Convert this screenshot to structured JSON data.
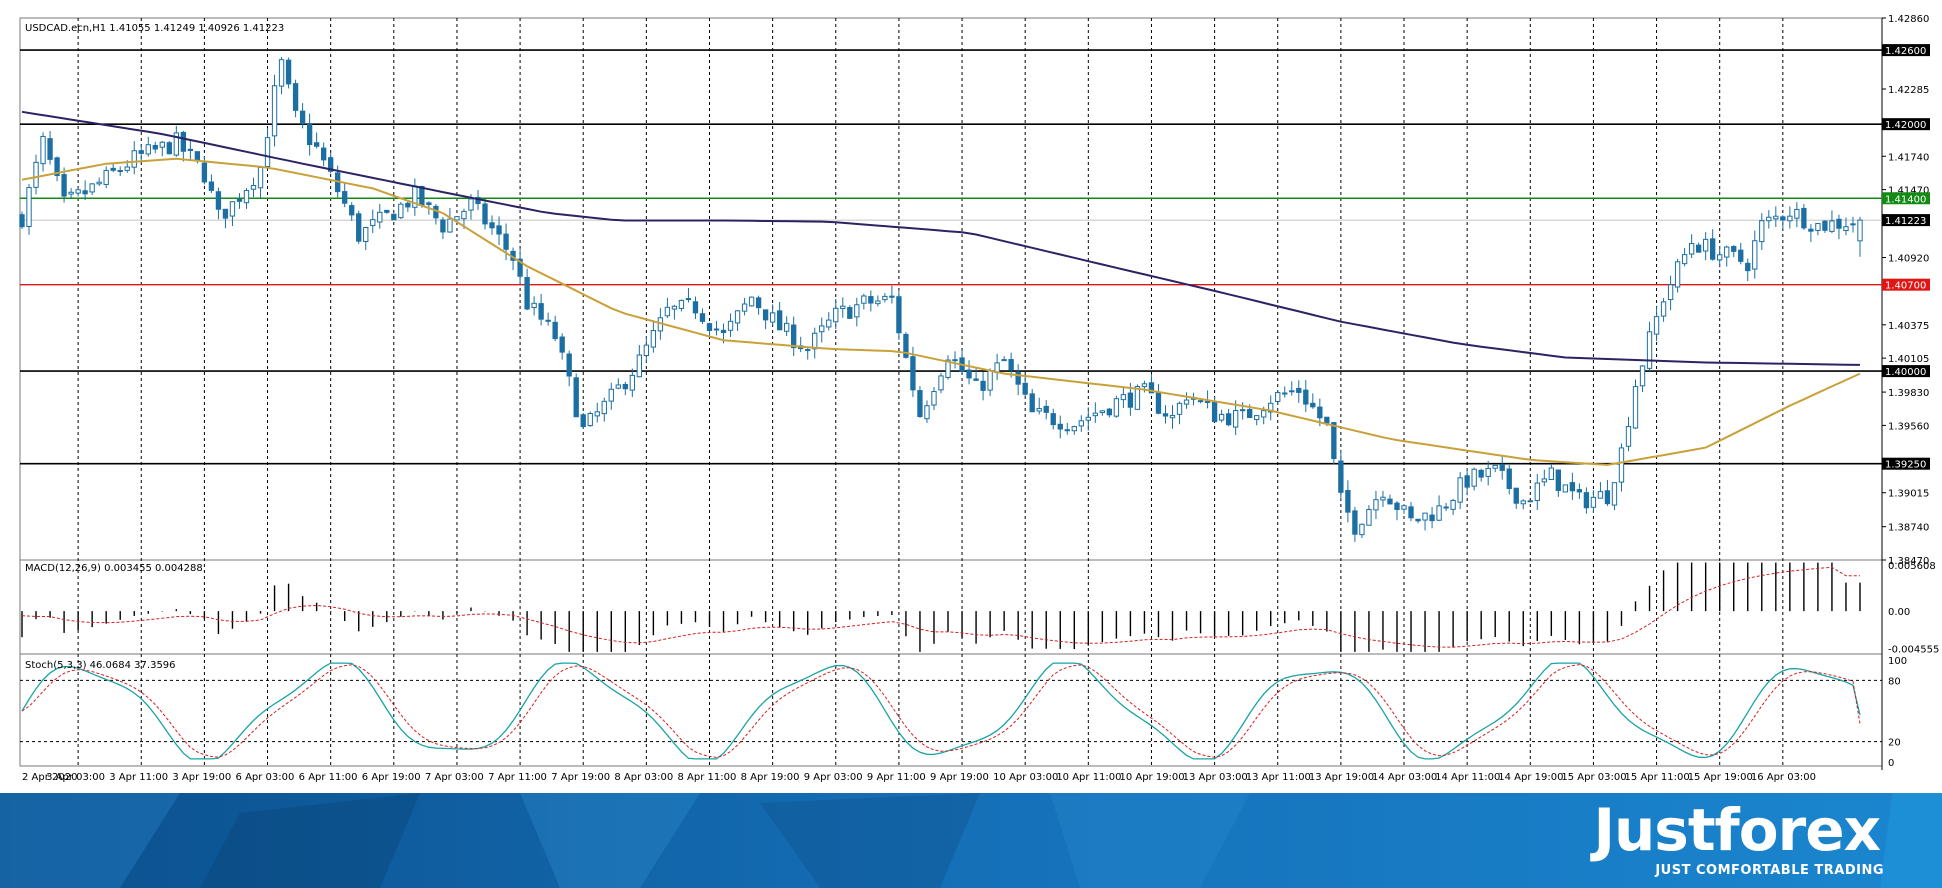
{
  "header": {
    "main_info": "USDCAD.ecn,H1  1.41055 1.41249 1.40926 1.41223",
    "macd_info": "MACD(12,26,9) 0.003455 0.004288",
    "stoch_info": "Stoch(5,3,3) 46.0684 37.3596"
  },
  "brand": {
    "name": "Justforex",
    "tagline": "JUST COMFORTABLE TRADING",
    "color_primary": "#1a78bf",
    "color_dark": "#0e5a9a"
  },
  "colors": {
    "bull": "#ffffff",
    "bear": "#1c6fa3",
    "candle_outline": "#1c6fa3",
    "ma_slow": "#2b2364",
    "ma_fast": "#c9a13a",
    "red_level": "#e01515",
    "green_level": "#138a13",
    "black_level": "#000000",
    "stoch_main": "#1aa3a3",
    "stoch_signal": "#d42020",
    "macd_signal": "#d42020",
    "macd_hist": "#000000"
  },
  "chart_data": [
    {
      "type": "candlestick",
      "symbol": "USDCAD.ecn",
      "timeframe": "H1",
      "ohlc_current": [
        1.41055,
        1.41249,
        1.40926,
        1.41223
      ],
      "ylim": [
        1.3847,
        1.4286
      ],
      "yticks": [
        "1.42860",
        "1.42600",
        "1.42285",
        "1.42000",
        "1.41740",
        "1.41470",
        "1.41400",
        "1.41223",
        "1.40920",
        "1.40700",
        "1.40375",
        "1.40105",
        "1.40000",
        "1.39830",
        "1.39560",
        "1.39250",
        "1.39015",
        "1.38740",
        "1.38470"
      ],
      "x_ticks": [
        "2 Apr 2020",
        "3 Apr 03:00",
        "3 Apr 11:00",
        "3 Apr 19:00",
        "6 Apr 03:00",
        "6 Apr 11:00",
        "6 Apr 19:00",
        "7 Apr 03:00",
        "7 Apr 11:00",
        "7 Apr 19:00",
        "8 Apr 03:00",
        "8 Apr 11:00",
        "8 Apr 19:00",
        "9 Apr 03:00",
        "9 Apr 11:00",
        "9 Apr 19:00",
        "10 Apr 03:00",
        "10 Apr 11:00",
        "10 Apr 19:00",
        "13 Apr 03:00",
        "13 Apr 11:00",
        "13 Apr 19:00",
        "14 Apr 03:00",
        "14 Apr 11:00",
        "14 Apr 19:00",
        "15 Apr 03:00",
        "15 Apr 11:00",
        "15 Apr 19:00",
        "16 Apr 03:00"
      ],
      "levels": [
        {
          "price": 1.426,
          "label": "1.42600",
          "color": "black"
        },
        {
          "price": 1.42,
          "label": "1.42000",
          "color": "black"
        },
        {
          "price": 1.414,
          "label": "1.41400",
          "color": "green"
        },
        {
          "price": 1.407,
          "label": "1.40700",
          "color": "red"
        },
        {
          "price": 1.4,
          "label": "1.40000",
          "color": "black"
        },
        {
          "price": 1.3925,
          "label": "1.39250",
          "color": "black"
        }
      ],
      "current_price": {
        "price": 1.41223,
        "label": "1.41223"
      },
      "ma_fast_keypoints": [
        [
          0,
          1.4155
        ],
        [
          12,
          1.4168
        ],
        [
          22,
          1.4172
        ],
        [
          35,
          1.4165
        ],
        [
          50,
          1.4148
        ],
        [
          60,
          1.4128
        ],
        [
          72,
          1.4085
        ],
        [
          85,
          1.4048
        ],
        [
          100,
          1.4025
        ],
        [
          115,
          1.4018
        ],
        [
          125,
          1.4016
        ],
        [
          140,
          1.3998
        ],
        [
          160,
          1.3985
        ],
        [
          178,
          1.3968
        ],
        [
          195,
          1.3945
        ],
        [
          215,
          1.3928
        ],
        [
          226,
          1.3924
        ],
        [
          240,
          1.3938
        ],
        [
          252,
          1.3972
        ],
        [
          262,
          1.3998
        ]
      ],
      "ma_slow_keypoints": [
        [
          0,
          1.421
        ],
        [
          20,
          1.4192
        ],
        [
          40,
          1.4168
        ],
        [
          60,
          1.4145
        ],
        [
          75,
          1.4128
        ],
        [
          85,
          1.4122
        ],
        [
          100,
          1.4122
        ],
        [
          115,
          1.4121
        ],
        [
          135,
          1.4112
        ],
        [
          155,
          1.4085
        ],
        [
          170,
          1.4065
        ],
        [
          188,
          1.404
        ],
        [
          205,
          1.4022
        ],
        [
          220,
          1.4011
        ],
        [
          240,
          1.4007
        ],
        [
          262,
          1.4005
        ]
      ],
      "candle_anchors": [
        [
          0,
          1.4125
        ],
        [
          3,
          1.4185
        ],
        [
          6,
          1.4135
        ],
        [
          10,
          1.4148
        ],
        [
          16,
          1.4172
        ],
        [
          22,
          1.4185
        ],
        [
          26,
          1.416
        ],
        [
          28,
          1.4125
        ],
        [
          30,
          1.4135
        ],
        [
          34,
          1.4165
        ],
        [
          36,
          1.4225
        ],
        [
          37,
          1.4248
        ],
        [
          39,
          1.4205
        ],
        [
          42,
          1.418
        ],
        [
          46,
          1.4135
        ],
        [
          48,
          1.411
        ],
        [
          52,
          1.4125
        ],
        [
          56,
          1.4142
        ],
        [
          60,
          1.4118
        ],
        [
          64,
          1.4135
        ],
        [
          67,
          1.4115
        ],
        [
          70,
          1.4092
        ],
        [
          72,
          1.4055
        ],
        [
          76,
          1.4028
        ],
        [
          80,
          1.3952
        ],
        [
          84,
          1.3978
        ],
        [
          88,
          1.4008
        ],
        [
          92,
          1.4048
        ],
        [
          96,
          1.4052
        ],
        [
          100,
          1.4028
        ],
        [
          104,
          1.406
        ],
        [
          108,
          1.4035
        ],
        [
          112,
          1.4018
        ],
        [
          116,
          1.4045
        ],
        [
          120,
          1.4055
        ],
        [
          124,
          1.4058
        ],
        [
          126,
          1.401
        ],
        [
          128,
          1.3965
        ],
        [
          132,
          1.4015
        ],
        [
          136,
          1.3985
        ],
        [
          140,
          1.4008
        ],
        [
          144,
          1.3965
        ],
        [
          150,
          1.3958
        ],
        [
          156,
          1.3975
        ],
        [
          160,
          1.3982
        ],
        [
          164,
          1.3962
        ],
        [
          166,
          1.3982
        ],
        [
          170,
          1.3965
        ],
        [
          174,
          1.3962
        ],
        [
          178,
          1.3978
        ],
        [
          182,
          1.3985
        ],
        [
          186,
          1.3955
        ],
        [
          188,
          1.3895
        ],
        [
          190,
          1.3875
        ],
        [
          194,
          1.3905
        ],
        [
          198,
          1.3878
        ],
        [
          202,
          1.3888
        ],
        [
          206,
          1.3912
        ],
        [
          210,
          1.3918
        ],
        [
          214,
          1.3895
        ],
        [
          218,
          1.3915
        ],
        [
          222,
          1.3895
        ],
        [
          226,
          1.39
        ],
        [
          228,
          1.3935
        ],
        [
          230,
          1.399
        ],
        [
          232,
          1.4025
        ],
        [
          234,
          1.406
        ],
        [
          238,
          1.4105
        ],
        [
          242,
          1.4095
        ],
        [
          246,
          1.4088
        ],
        [
          248,
          1.4118
        ],
        [
          252,
          1.413
        ],
        [
          256,
          1.4118
        ],
        [
          262,
          1.4122
        ]
      ]
    },
    {
      "type": "line",
      "name": "MACD(12,26,9)",
      "main": 0.003455,
      "signal": 0.004288,
      "yticks": [
        "0.005608",
        "0.00",
        "-0.004555"
      ],
      "ylim": [
        -0.0052,
        0.0062
      ]
    },
    {
      "type": "line",
      "name": "Stoch(5,3,3)",
      "main": 46.0684,
      "signal": 37.3596,
      "yticks": [
        "100",
        "80",
        "20",
        "0"
      ],
      "levels": [
        20,
        80
      ],
      "ylim": [
        0,
        100
      ]
    }
  ]
}
